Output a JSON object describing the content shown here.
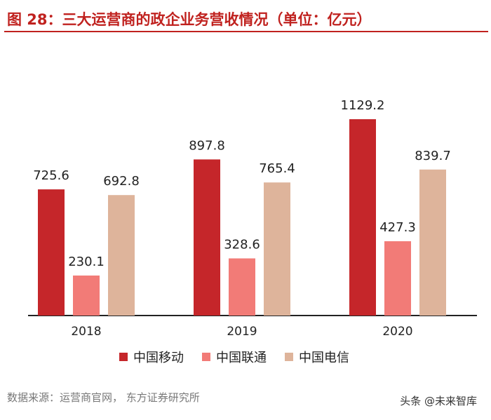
{
  "figure": {
    "title": "图 28：三大运营商的政企业务营收情况（单位：亿元）",
    "source": "数据来源：运营商官网，  东方证券研究所",
    "watermark": "头条 @未来智库"
  },
  "colors": {
    "title": "#c0221f",
    "mobile": "#c5262a",
    "unicom": "#f27b77",
    "telecom": "#deb49b"
  },
  "chart_data": {
    "type": "bar",
    "title": "三大运营商的政企业务营收情况（单位：亿元）",
    "xlabel": "",
    "ylabel": "",
    "categories": [
      "2018",
      "2019",
      "2020"
    ],
    "ylim": [
      0,
      1200
    ],
    "grid": false,
    "legend_position": "bottom",
    "series": [
      {
        "name": "中国移动",
        "values": [
          725.6,
          897.8,
          1129.2
        ],
        "color": "#c5262a",
        "labels": [
          "725.6",
          "897.8",
          "1129.2"
        ]
      },
      {
        "name": "中国联通",
        "values": [
          230.1,
          328.6,
          427.3
        ],
        "color": "#f27b77",
        "labels": [
          "230.1",
          "328.6",
          "427.3"
        ]
      },
      {
        "name": "中国电信",
        "values": [
          692.8,
          765.4,
          839.7
        ],
        "color": "#deb49b",
        "labels": [
          "692.8",
          "765.4",
          "839.7"
        ]
      }
    ]
  }
}
